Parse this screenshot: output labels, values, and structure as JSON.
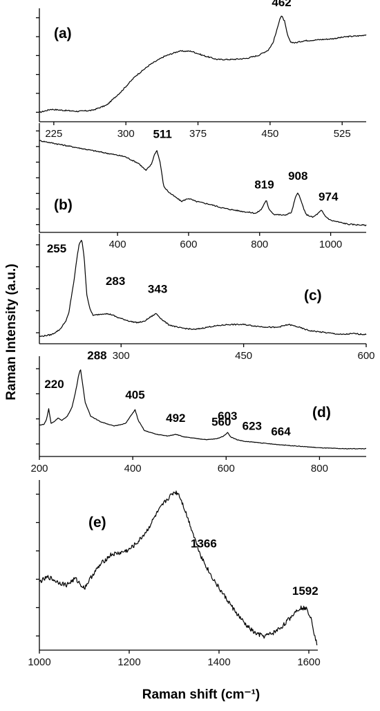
{
  "chart_data": {
    "type": "line",
    "ylabel": "Raman Intensity (a.u.)",
    "xlabel": "Raman shift (cm⁻¹)",
    "panels": [
      {
        "id": "a",
        "label": "(a)",
        "xlim": [
          210,
          550
        ],
        "xticks": [
          225,
          300,
          375,
          450,
          525
        ],
        "x": [
          210,
          222,
          235,
          250,
          265,
          280,
          295,
          310,
          325,
          340,
          355,
          368,
          380,
          395,
          410,
          425,
          438,
          448,
          453,
          457,
          460,
          462,
          465,
          468,
          471,
          476,
          485,
          500,
          515,
          530,
          545,
          550
        ],
        "y": [
          0.05,
          0.08,
          0.07,
          0.06,
          0.07,
          0.12,
          0.25,
          0.4,
          0.51,
          0.59,
          0.64,
          0.64,
          0.6,
          0.56,
          0.56,
          0.57,
          0.6,
          0.65,
          0.72,
          0.84,
          0.95,
          0.98,
          0.93,
          0.8,
          0.73,
          0.72,
          0.74,
          0.75,
          0.76,
          0.78,
          0.79,
          0.8
        ],
        "peaks": [
          {
            "x": 462,
            "label": "462"
          }
        ]
      },
      {
        "id": "b",
        "label": "(b)",
        "xlim": [
          180,
          1100
        ],
        "xticks": [
          400,
          600,
          800,
          1000
        ],
        "x": [
          180,
          240,
          300,
          360,
          420,
          460,
          480,
          495,
          505,
          511,
          520,
          530,
          545,
          560,
          580,
          600,
          620,
          660,
          700,
          750,
          790,
          805,
          815,
          819,
          825,
          840,
          870,
          890,
          900,
          908,
          916,
          930,
          950,
          965,
          974,
          985,
          1000,
          1050,
          1100
        ],
        "y": [
          0.88,
          0.84,
          0.8,
          0.76,
          0.72,
          0.65,
          0.58,
          0.64,
          0.75,
          0.78,
          0.66,
          0.42,
          0.36,
          0.32,
          0.27,
          0.3,
          0.27,
          0.24,
          0.2,
          0.17,
          0.15,
          0.19,
          0.26,
          0.28,
          0.2,
          0.14,
          0.13,
          0.16,
          0.3,
          0.36,
          0.28,
          0.14,
          0.11,
          0.15,
          0.18,
          0.12,
          0.08,
          0.04,
          0.03
        ],
        "peaks": [
          {
            "x": 511,
            "label": "511"
          },
          {
            "x": 819,
            "label": "819"
          },
          {
            "x": 908,
            "label": "908"
          },
          {
            "x": 974,
            "label": "974"
          }
        ]
      },
      {
        "id": "c",
        "label": "(c)",
        "xlim": [
          200,
          600
        ],
        "xticks": [
          300,
          450,
          600
        ],
        "x": [
          200,
          215,
          225,
          232,
          236,
          239,
          243,
          246,
          249,
          252,
          255,
          258,
          262,
          266,
          272,
          280,
          288,
          296,
          304,
          312,
          320,
          328,
          335,
          343,
          350,
          358,
          370,
          390,
          410,
          430,
          450,
          470,
          490,
          505,
          515,
          530,
          550,
          570,
          585,
          600
        ],
        "y": [
          0.03,
          0.05,
          0.1,
          0.18,
          0.26,
          0.42,
          0.62,
          0.82,
          0.96,
          1.0,
          0.8,
          0.45,
          0.3,
          0.24,
          0.25,
          0.26,
          0.25,
          0.22,
          0.2,
          0.18,
          0.17,
          0.18,
          0.22,
          0.26,
          0.2,
          0.15,
          0.12,
          0.1,
          0.13,
          0.15,
          0.15,
          0.13,
          0.12,
          0.15,
          0.13,
          0.09,
          0.07,
          0.05,
          0.06,
          0.05
        ],
        "peaks": [
          {
            "x": 255,
            "label": "255"
          },
          {
            "x": 283,
            "label": "283"
          },
          {
            "x": 343,
            "label": "343"
          }
        ]
      },
      {
        "id": "d",
        "label": "(d)",
        "xlim": [
          200,
          900
        ],
        "xticks": [
          200,
          400,
          600,
          800
        ],
        "x": [
          200,
          210,
          215,
          220,
          225,
          232,
          240,
          248,
          260,
          270,
          278,
          284,
          288,
          292,
          298,
          310,
          330,
          360,
          385,
          398,
          405,
          412,
          425,
          450,
          475,
          492,
          510,
          540,
          560,
          580,
          595,
          603,
          610,
          623,
          640,
          664,
          700,
          750,
          800,
          850,
          900
        ],
        "y": [
          0.3,
          0.31,
          0.36,
          0.48,
          0.32,
          0.34,
          0.38,
          0.35,
          0.4,
          0.5,
          0.68,
          0.85,
          0.92,
          0.78,
          0.55,
          0.4,
          0.34,
          0.29,
          0.32,
          0.42,
          0.47,
          0.35,
          0.24,
          0.2,
          0.18,
          0.2,
          0.17,
          0.15,
          0.14,
          0.15,
          0.18,
          0.22,
          0.17,
          0.14,
          0.12,
          0.11,
          0.09,
          0.07,
          0.05,
          0.04,
          0.04
        ],
        "peaks": [
          {
            "x": 220,
            "label": "220"
          },
          {
            "x": 288,
            "label": "288"
          },
          {
            "x": 405,
            "label": "405"
          },
          {
            "x": 492,
            "label": "492"
          },
          {
            "x": 560,
            "label": "560"
          },
          {
            "x": 603,
            "label": "603"
          },
          {
            "x": 623,
            "label": "623"
          },
          {
            "x": 664,
            "label": "664"
          }
        ]
      },
      {
        "id": "e",
        "label": "(e)",
        "xlim": [
          1000,
          1620
        ],
        "xticks": [
          1000,
          1200,
          1400,
          1600
        ],
        "x": [
          1000,
          1020,
          1040,
          1060,
          1080,
          1100,
          1120,
          1140,
          1160,
          1180,
          1200,
          1220,
          1240,
          1260,
          1280,
          1300,
          1310,
          1320,
          1340,
          1360,
          1380,
          1400,
          1420,
          1440,
          1460,
          1480,
          1500,
          1520,
          1540,
          1560,
          1575,
          1585,
          1595,
          1605,
          1612,
          1618
        ],
        "y": [
          0.4,
          0.43,
          0.4,
          0.38,
          0.42,
          0.36,
          0.45,
          0.52,
          0.57,
          0.58,
          0.6,
          0.65,
          0.72,
          0.82,
          0.9,
          0.96,
          0.95,
          0.88,
          0.72,
          0.56,
          0.45,
          0.36,
          0.28,
          0.2,
          0.13,
          0.08,
          0.06,
          0.08,
          0.12,
          0.18,
          0.23,
          0.24,
          0.23,
          0.18,
          0.08,
          0.01
        ],
        "peaks": [
          {
            "x": 1366,
            "label": "1366"
          },
          {
            "x": 1592,
            "label": "1592"
          }
        ]
      }
    ]
  }
}
